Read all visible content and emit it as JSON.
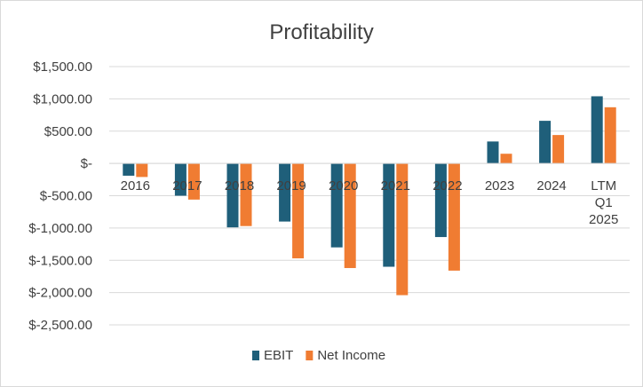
{
  "chart_data": {
    "type": "bar",
    "title": "Profitability",
    "categories": [
      "2016",
      "2017",
      "2018",
      "2019",
      "2020",
      "2021",
      "2022",
      "2023",
      "2024",
      "LTM Q1 2025"
    ],
    "category_lines": [
      [
        "2016"
      ],
      [
        "2017"
      ],
      [
        "2018"
      ],
      [
        "2019"
      ],
      [
        "2020"
      ],
      [
        "2021"
      ],
      [
        "2022"
      ],
      [
        "2023"
      ],
      [
        "2024"
      ],
      [
        "LTM",
        "Q1",
        "2025"
      ]
    ],
    "series": [
      {
        "name": "EBIT",
        "color": "#1f5f7a",
        "values": [
          -190,
          -500,
          -990,
          -900,
          -1300,
          -1600,
          -1140,
          340,
          660,
          1040
        ]
      },
      {
        "name": "Net Income",
        "color": "#f07c32",
        "values": [
          -210,
          -560,
          -970,
          -1470,
          -1620,
          -2040,
          -1660,
          150,
          440,
          870
        ]
      }
    ],
    "ylim": [
      -2500,
      1500
    ],
    "yticks": [
      1500,
      1000,
      500,
      0,
      -500,
      -1000,
      -1500,
      -2000,
      -2500
    ],
    "ytick_labels": [
      "$1,500.00",
      "$1,000.00",
      "$500.00",
      "$-",
      "$-500.00",
      "$-1,000.00",
      "$-1,500.00",
      "$-2,000.00",
      "$-2,500.00"
    ],
    "grid": true,
    "legend": "bottom"
  }
}
